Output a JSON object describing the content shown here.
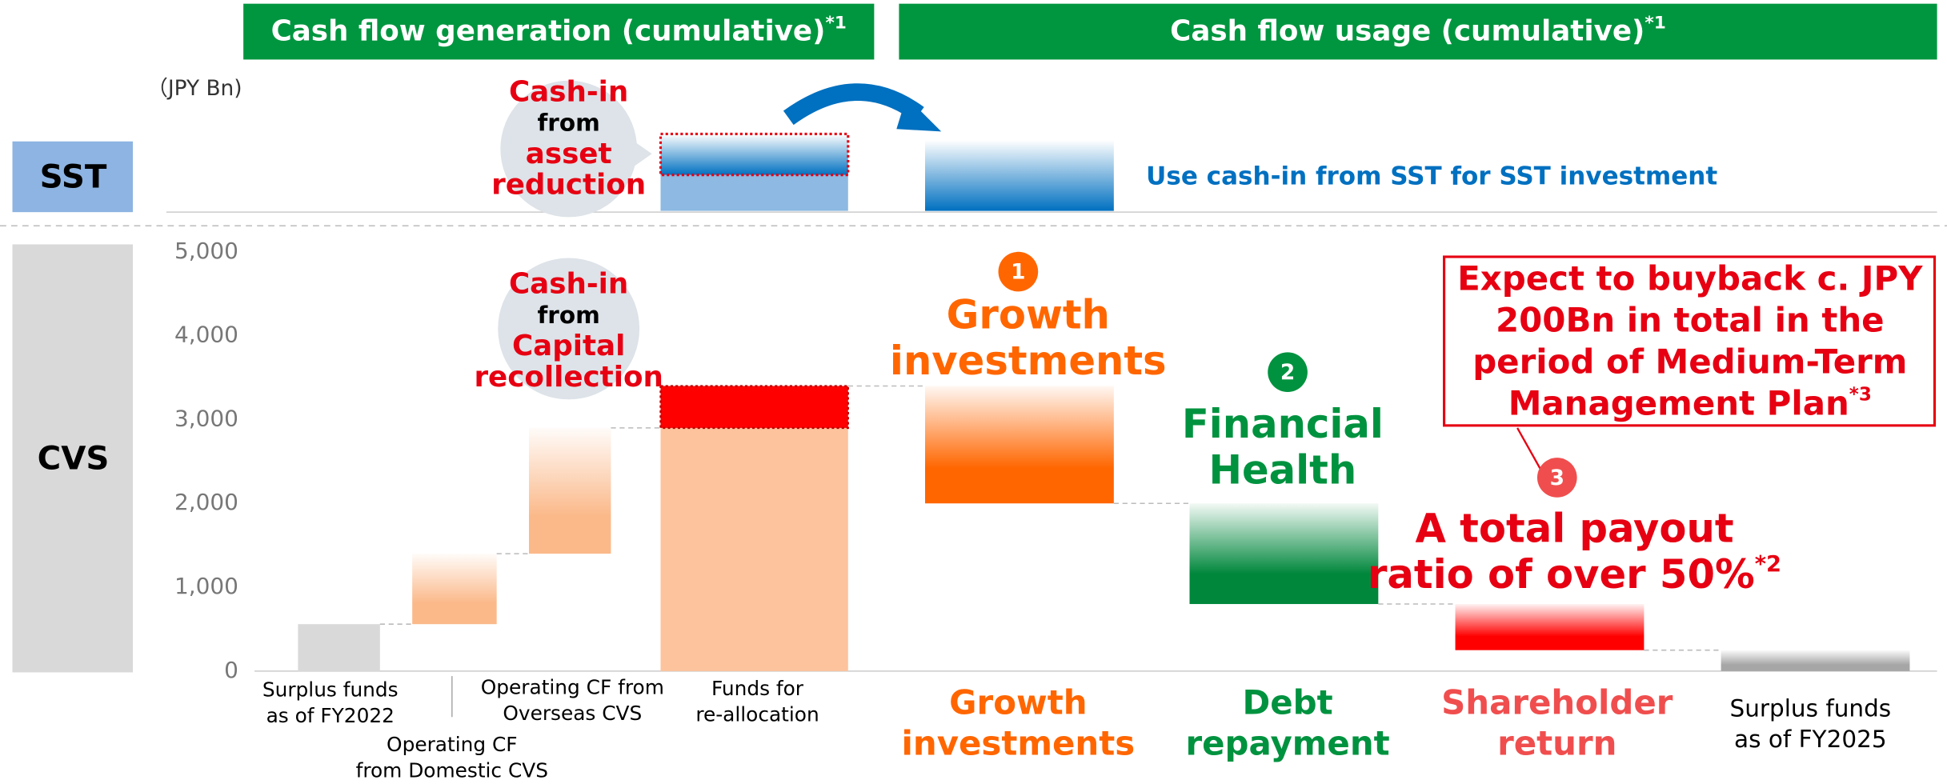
{
  "chart_data": {
    "type": "waterfall",
    "header": {
      "generation": {
        "text": "Cash flow generation (cumulative)",
        "note": "*1"
      },
      "usage": {
        "text": "Cash flow usage (cumulative)",
        "note": "*1"
      }
    },
    "unit": "（JPY Bn)",
    "segments": {
      "sst": "SST",
      "cvs": "CVS"
    },
    "sst_note": "Use cash-in from SST for SST investment",
    "categories": [
      [
        "Surplus funds",
        "as of FY2022"
      ],
      [
        "Operating CF",
        "from Domestic CVS"
      ],
      [
        "Operating CF from",
        "Overseas CVS"
      ],
      [
        "Funds for",
        "re-allocation"
      ],
      [
        "Growth",
        "investments"
      ],
      [
        "Debt",
        "repayment"
      ],
      [
        "Shareholder",
        "return"
      ],
      [
        "Surplus funds",
        "as of FY2025"
      ]
    ],
    "kinds": [
      "start",
      "delta",
      "delta",
      "delta",
      "delta",
      "delta",
      "delta",
      "total"
    ],
    "values": [
      560,
      840,
      1500,
      500,
      -1400,
      -1200,
      -550,
      250
    ],
    "colors": [
      "#d9d9d9",
      "#fbb98a",
      "#fbb98a",
      "#ff0000",
      "#ff6600",
      "#00873c",
      "#ff0000",
      "#a6a6a6"
    ],
    "gradient": [
      false,
      true,
      true,
      false,
      true,
      true,
      true,
      true
    ],
    "base_color": "#fdc39c",
    "ylim": [
      0,
      5000
    ],
    "yticks": [
      0,
      {
        "value": 1000,
        "label": "1,000"
      },
      {
        "value": 2000,
        "label": "2,000"
      },
      {
        "value": 3000,
        "label": "3,000"
      },
      {
        "value": 4000,
        "label": "4,000"
      },
      {
        "value": 5000,
        "label": "5,000"
      }
    ],
    "grid": false,
    "annotations": {
      "asset_bubble": [
        "Cash-in",
        "from",
        "asset",
        "reduction"
      ],
      "capital_bubble": [
        "Cash-in",
        "from",
        "Capital",
        "recollection"
      ],
      "markers": [
        "1",
        "2",
        "3"
      ],
      "growth": [
        "Growth",
        "investments"
      ],
      "health": [
        "Financial",
        "Health"
      ],
      "payout": {
        "lines": [
          "A total payout",
          "ratio of over 50%"
        ],
        "note": "*2"
      },
      "buyback": {
        "lines": [
          "Expect to buyback c. JPY",
          "200Bn in total in the",
          "period of Medium-Term",
          "Management Plan"
        ],
        "note": "*3"
      }
    }
  }
}
